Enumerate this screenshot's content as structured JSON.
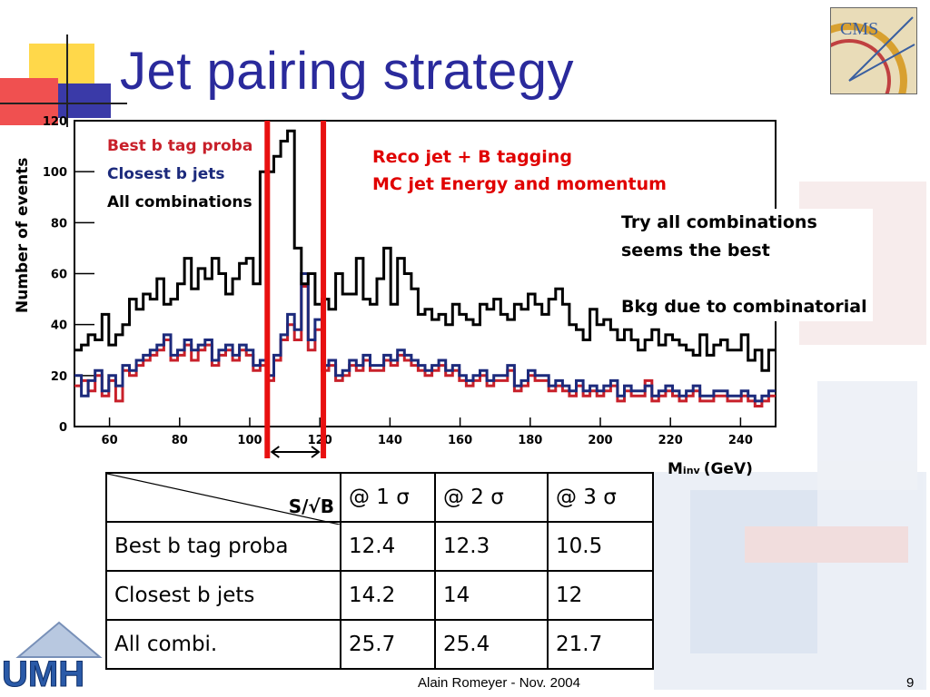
{
  "slide": {
    "title": "Jet pairing strategy",
    "footer": "Alain Romeyer - Nov. 2004",
    "page_number": "9",
    "logo_cms": "CMS",
    "logo_umh": "UMH"
  },
  "annotations": {
    "red_line1": "Reco jet + B tagging",
    "red_line2": "MC jet Energy and momentum",
    "black_line1": "Try all combinations",
    "black_line2": "seems the best",
    "black_line3": "Bkg due to combinatorial"
  },
  "table": {
    "corner_label": "S/√B",
    "headers": [
      "@ 1 σ",
      "@ 2 σ",
      "@ 3 σ"
    ],
    "rows": [
      {
        "label": "Best b tag proba",
        "values": [
          "12.4",
          "12.3",
          "10.5"
        ]
      },
      {
        "label": "Closest b jets",
        "values": [
          "14.2",
          "14",
          "12"
        ]
      },
      {
        "label": "All combi.",
        "values": [
          "25.7",
          "25.4",
          "21.7"
        ]
      }
    ]
  },
  "chart_data": {
    "type": "line",
    "title": "",
    "xlabel": "M",
    "xlabel_sub": "inv",
    "xlabel_unit": "(GeV)",
    "ylabel": "Number of events",
    "xlim": [
      50,
      250
    ],
    "ylim": [
      0,
      120
    ],
    "xticks": [
      60,
      80,
      100,
      120,
      140,
      160,
      180,
      200,
      220,
      240
    ],
    "yticks": [
      0,
      20,
      40,
      60,
      80,
      100,
      120
    ],
    "legend_position": "top-left",
    "window_lines_x": [
      105,
      121
    ],
    "series": [
      {
        "name": "Best b tag proba",
        "color": "#c8202a",
        "values": [
          16,
          18,
          14,
          20,
          12,
          18,
          10,
          22,
          20,
          24,
          26,
          28,
          30,
          34,
          26,
          28,
          32,
          26,
          30,
          32,
          24,
          28,
          30,
          26,
          30,
          28,
          22,
          24,
          18,
          26,
          34,
          40,
          34,
          55,
          30,
          38,
          22,
          24,
          18,
          20,
          24,
          22,
          26,
          22,
          22,
          26,
          24,
          28,
          26,
          24,
          22,
          20,
          22,
          24,
          20,
          22,
          18,
          16,
          18,
          20,
          16,
          18,
          18,
          22,
          14,
          16,
          20,
          18,
          18,
          14,
          16,
          14,
          12,
          16,
          12,
          14,
          12,
          14,
          16,
          10,
          14,
          12,
          12,
          18,
          10,
          12,
          14,
          12,
          10,
          12,
          14,
          10,
          10,
          12,
          12,
          10,
          10,
          12,
          10,
          8,
          10,
          12
        ]
      },
      {
        "name": "Closest b jets",
        "color": "#1c2a7c",
        "values": [
          20,
          12,
          18,
          22,
          14,
          20,
          16,
          24,
          22,
          26,
          28,
          30,
          32,
          36,
          28,
          30,
          34,
          30,
          32,
          34,
          26,
          30,
          32,
          28,
          32,
          30,
          24,
          26,
          20,
          28,
          36,
          44,
          38,
          60,
          34,
          42,
          24,
          26,
          20,
          22,
          26,
          24,
          28,
          24,
          24,
          28,
          26,
          30,
          28,
          26,
          24,
          22,
          24,
          26,
          22,
          24,
          20,
          18,
          20,
          22,
          18,
          20,
          20,
          24,
          16,
          18,
          22,
          20,
          20,
          16,
          18,
          16,
          14,
          18,
          14,
          16,
          14,
          16,
          18,
          12,
          16,
          14,
          14,
          16,
          12,
          14,
          16,
          14,
          12,
          14,
          16,
          12,
          12,
          14,
          14,
          12,
          12,
          14,
          12,
          10,
          12,
          14
        ]
      },
      {
        "name": "All combinations",
        "color": "#000000",
        "values": [
          30,
          32,
          36,
          34,
          44,
          32,
          36,
          40,
          50,
          46,
          52,
          50,
          58,
          48,
          50,
          56,
          66,
          54,
          62,
          58,
          66,
          60,
          52,
          58,
          64,
          66,
          56,
          100,
          100,
          106,
          112,
          116,
          70,
          56,
          60,
          48,
          50,
          46,
          60,
          52,
          52,
          66,
          50,
          48,
          58,
          70,
          48,
          66,
          60,
          54,
          44,
          46,
          42,
          44,
          40,
          48,
          44,
          42,
          40,
          48,
          46,
          50,
          44,
          42,
          48,
          46,
          52,
          48,
          44,
          50,
          54,
          48,
          40,
          38,
          34,
          46,
          40,
          42,
          38,
          34,
          38,
          34,
          30,
          34,
          38,
          32,
          36,
          34,
          32,
          30,
          28,
          36,
          28,
          32,
          34,
          30,
          30,
          36,
          26,
          30,
          22,
          30
        ]
      }
    ]
  }
}
